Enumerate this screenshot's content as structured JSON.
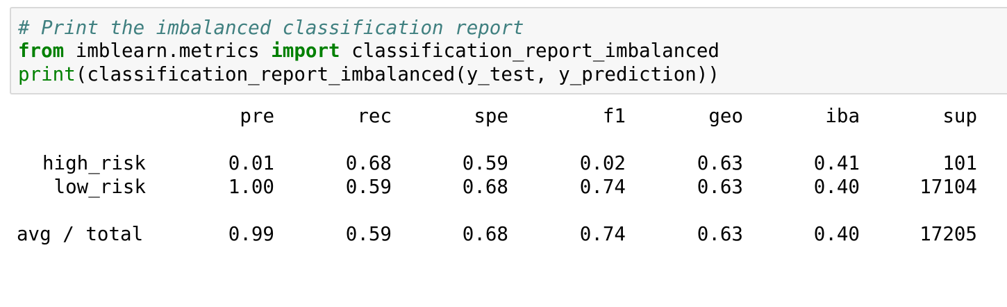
{
  "code": {
    "line1": {
      "comment": "# Print the imbalanced classification report"
    },
    "line2": {
      "kw_from": "from",
      "module": " imblearn.metrics ",
      "kw_import": "import",
      "name": " classification_report_imbalanced"
    },
    "line3": {
      "builtin": "print",
      "rest": "(classification_report_imbalanced(y_test, y_prediction))"
    }
  },
  "report": {
    "headers": [
      "pre",
      "rec",
      "spe",
      "f1",
      "geo",
      "iba",
      "sup"
    ],
    "rows": [
      {
        "label": "high_risk",
        "values": [
          "0.01",
          "0.68",
          "0.59",
          "0.02",
          "0.63",
          "0.41",
          "101"
        ]
      },
      {
        "label": "low_risk",
        "values": [
          "1.00",
          "0.59",
          "0.68",
          "0.74",
          "0.63",
          "0.40",
          "17104"
        ]
      }
    ],
    "total": {
      "label": "avg / total",
      "values": [
        "0.99",
        "0.59",
        "0.68",
        "0.74",
        "0.63",
        "0.40",
        "17205"
      ]
    }
  }
}
